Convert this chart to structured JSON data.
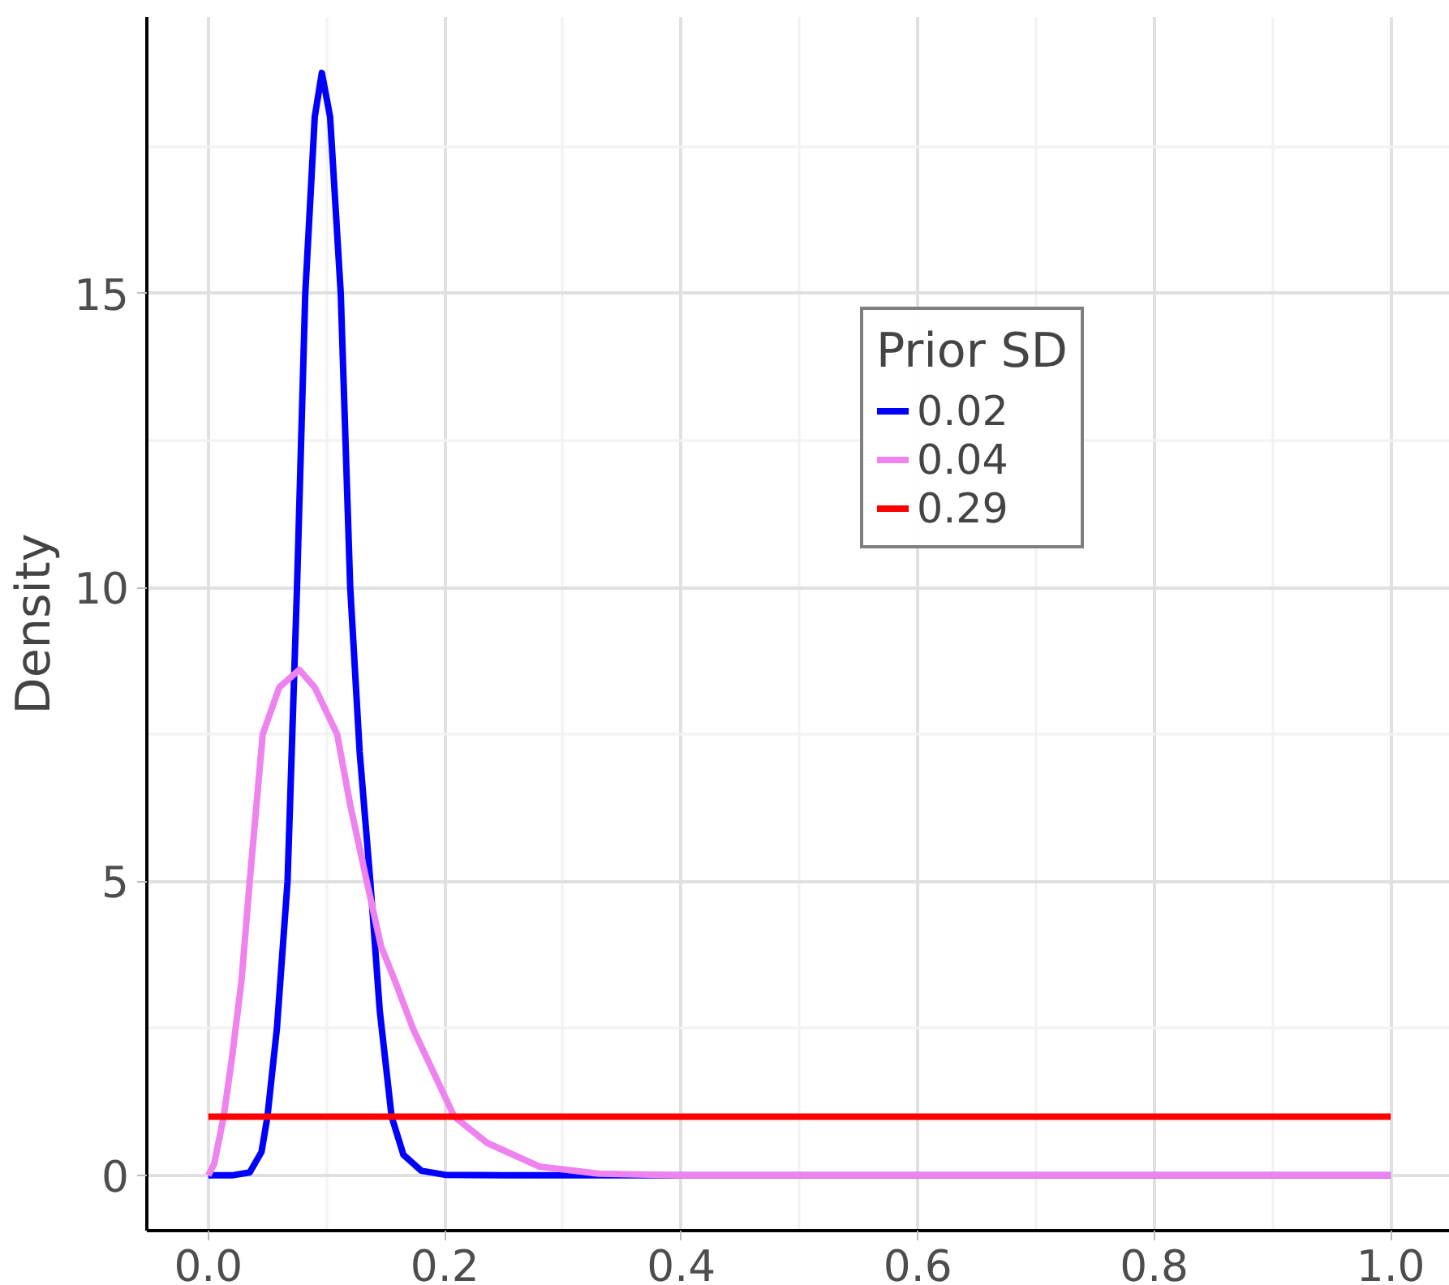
{
  "chart_data": {
    "type": "line",
    "ylabel": "Density",
    "legend_title": "Prior SD",
    "legend": "top right",
    "grid": true,
    "xlim": [
      -0.052,
      1.05
    ],
    "ylim": [
      -0.94,
      19.7
    ],
    "xticks": [
      {
        "value": 0,
        "label": "0.0"
      },
      {
        "value": 0.2,
        "label": "0.2"
      },
      {
        "value": 0.4,
        "label": "0.4"
      },
      {
        "value": 0.6,
        "label": "0.6"
      },
      {
        "value": 0.8,
        "label": "0.8"
      },
      {
        "value": 1,
        "label": "1.0"
      }
    ],
    "yticks": [
      0,
      5,
      10,
      15
    ],
    "series": [
      {
        "name": "0.02",
        "color": "#0000ff",
        "x": [
          0,
          0.02,
          0.035,
          0.045,
          0.05,
          0.058,
          0.067,
          0.075,
          0.082,
          0.09,
          0.096,
          0.103,
          0.112,
          0.12,
          0.128,
          0.137,
          0.145,
          0.155,
          0.165,
          0.18,
          0.2,
          0.25,
          0.5,
          1
        ],
        "values": [
          0,
          0,
          0.05,
          0.4,
          1,
          2.5,
          5,
          10,
          15,
          18,
          18.75,
          18,
          15,
          10,
          7.2,
          5,
          2.8,
          1,
          0.35,
          0.08,
          0.01,
          0,
          0,
          0
        ]
      },
      {
        "name": "0.04",
        "color": "#ee82ee",
        "x": [
          0,
          0.005,
          0.013,
          0.02,
          0.028,
          0.035,
          0.046,
          0.06,
          0.077,
          0.09,
          0.109,
          0.12,
          0.134,
          0.146,
          0.158,
          0.173,
          0.208,
          0.236,
          0.28,
          0.33,
          0.4,
          1
        ],
        "values": [
          0,
          0.2,
          1,
          2,
          3.3,
          5,
          7.5,
          8.3,
          8.6,
          8.3,
          7.5,
          6.3,
          5,
          3.9,
          3.3,
          2.5,
          1,
          0.55,
          0.15,
          0.03,
          0,
          0
        ]
      },
      {
        "name": "0.29",
        "color": "#ff0000",
        "x": [
          0,
          1
        ],
        "values": [
          1,
          1
        ]
      }
    ]
  }
}
